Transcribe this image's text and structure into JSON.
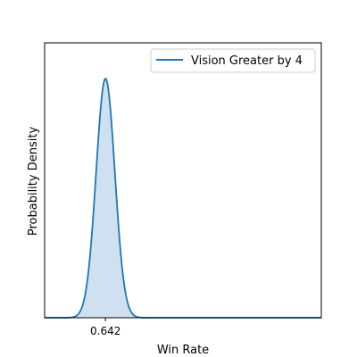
{
  "chart_data": {
    "type": "area",
    "title": "",
    "xlabel": "Win Rate",
    "ylabel": "Probability Density",
    "xticks": [
      0.642
    ],
    "xtick_labels": [
      "0.642"
    ],
    "xlim": [
      0.62,
      0.72
    ],
    "ylim": [
      0,
      1.0
    ],
    "yticks_shown": false,
    "grid": false,
    "legend_position": "top-right",
    "series": [
      {
        "name": "Vision Greater by 4",
        "color": "#1f77b4",
        "fill_color": "#cfe1f0",
        "peak_x": 0.642,
        "sd": 0.0034,
        "peak_y": 0.87
      }
    ]
  }
}
